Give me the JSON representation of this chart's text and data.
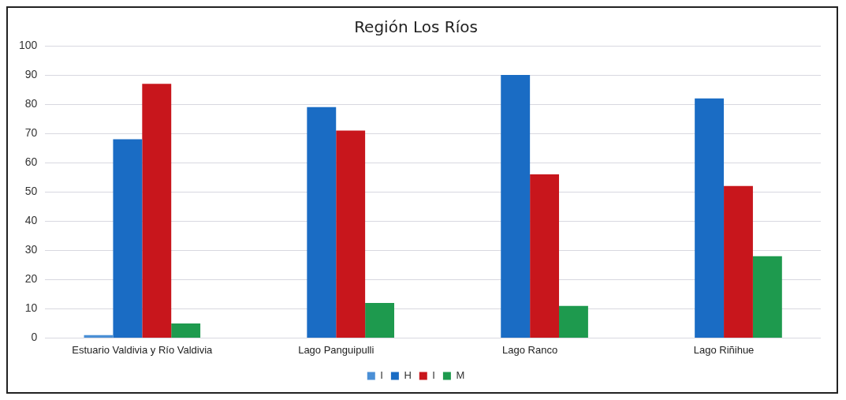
{
  "chart_data": {
    "type": "bar",
    "title": "Región Los Ríos",
    "categories": [
      "Estuario Valdivia y Río Valdivia",
      "Lago Panguipulli",
      "Lago Ranco",
      "Lago Riñihue"
    ],
    "series": [
      {
        "name": "I",
        "color": "#4a8fd6",
        "values": [
          1,
          null,
          null,
          null
        ]
      },
      {
        "name": "H",
        "color": "#1a6cc4",
        "values": [
          68,
          79,
          90,
          82
        ]
      },
      {
        "name": "I",
        "color": "#c8161c",
        "values": [
          87,
          71,
          56,
          52
        ]
      },
      {
        "name": "M",
        "color": "#1e9a4e",
        "values": [
          5,
          12,
          11,
          28
        ]
      }
    ],
    "ylim": [
      0,
      100
    ],
    "yticks": [
      0,
      10,
      20,
      30,
      40,
      50,
      60,
      70,
      80,
      90,
      100
    ],
    "grid": "y",
    "legend": "bottom"
  }
}
